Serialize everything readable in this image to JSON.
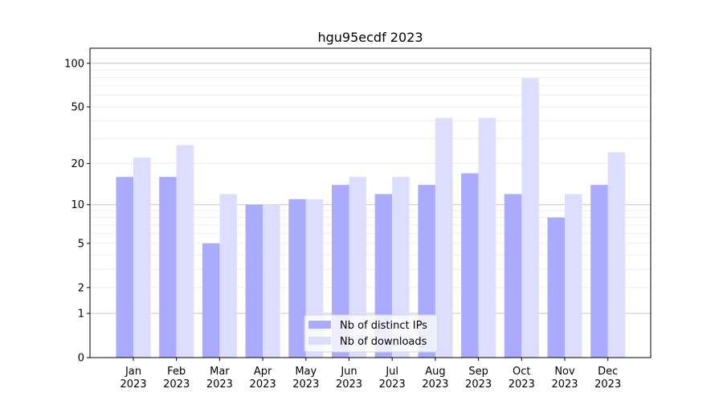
{
  "chart_data": {
    "type": "bar",
    "title": "hgu95ecdf 2023",
    "xlabel": "",
    "ylabel": "",
    "yscale": "log(1+y)",
    "ylim": [
      0,
      120
    ],
    "yticks": [
      0,
      1,
      2,
      5,
      10,
      20,
      50,
      100
    ],
    "grid": true,
    "legend_position": "bottom-center",
    "categories": [
      "Jan\n2023",
      "Feb\n2023",
      "Mar\n2023",
      "Apr\n2023",
      "May\n2023",
      "Jun\n2023",
      "Jul\n2023",
      "Aug\n2023",
      "Sep\n2023",
      "Oct\n2023",
      "Nov\n2023",
      "Dec\n2023"
    ],
    "series": [
      {
        "name": "Nb of distinct IPs",
        "color": "#aaaaff",
        "values": [
          16,
          16,
          5,
          10,
          11,
          14,
          12,
          14,
          17,
          12,
          8,
          14
        ]
      },
      {
        "name": "Nb of downloads",
        "color": "#ddddff",
        "values": [
          22,
          27,
          12,
          10,
          11,
          16,
          16,
          42,
          42,
          79,
          12,
          24
        ]
      }
    ]
  }
}
